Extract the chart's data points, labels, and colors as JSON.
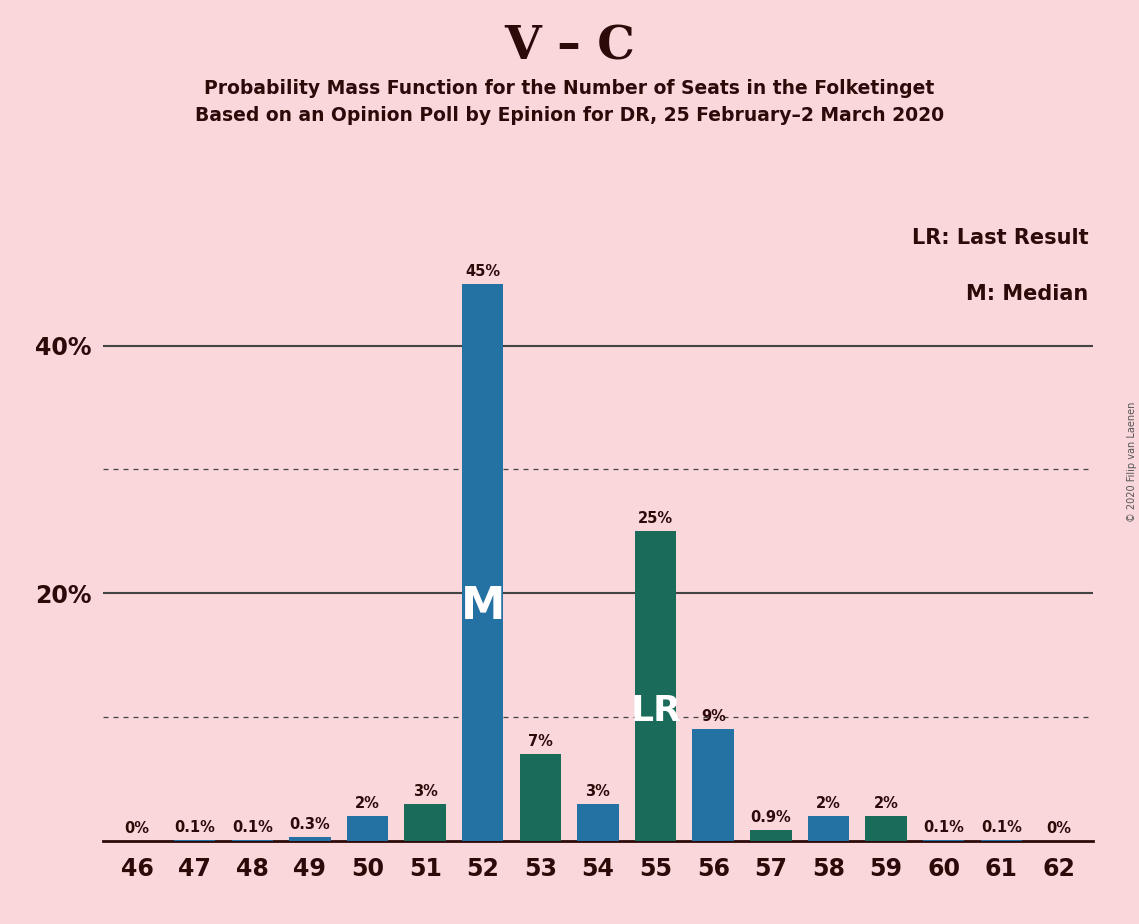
{
  "title": "V – C",
  "subtitle1": "Probability Mass Function for the Number of Seats in the Folketinget",
  "subtitle2": "Based on an Opinion Poll by Epinion for DR, 25 February–2 March 2020",
  "copyright": "© 2020 Filip van Laenen",
  "legend_lr": "LR: Last Result",
  "legend_m": "M: Median",
  "seats": [
    46,
    47,
    48,
    49,
    50,
    51,
    52,
    53,
    54,
    55,
    56,
    57,
    58,
    59,
    60,
    61,
    62
  ],
  "values": [
    0.0,
    0.1,
    0.1,
    0.3,
    2.0,
    3.0,
    45.0,
    7.0,
    3.0,
    25.0,
    9.0,
    0.9,
    2.0,
    2.0,
    0.1,
    0.1,
    0.0
  ],
  "labels": [
    "0%",
    "0.1%",
    "0.1%",
    "0.3%",
    "2%",
    "3%",
    "45%",
    "7%",
    "3%",
    "25%",
    "9%",
    "0.9%",
    "2%",
    "2%",
    "0.1%",
    "0.1%",
    "0%"
  ],
  "bar_colors": [
    "#2471a3",
    "#2471a3",
    "#2471a3",
    "#2471a3",
    "#2471a3",
    "#1b6b5a",
    "#2471a3",
    "#1b6b5a",
    "#2471a3",
    "#1b6b5a",
    "#2471a3",
    "#1b6b5a",
    "#2471a3",
    "#1b6b5a",
    "#2471a3",
    "#2471a3",
    "#2471a3"
  ],
  "median_seat": 52,
  "lr_seat": 55,
  "background_color": "#f9d7da",
  "text_color": "#2c0a0a",
  "ylim_max": 50,
  "bar_width": 0.72
}
